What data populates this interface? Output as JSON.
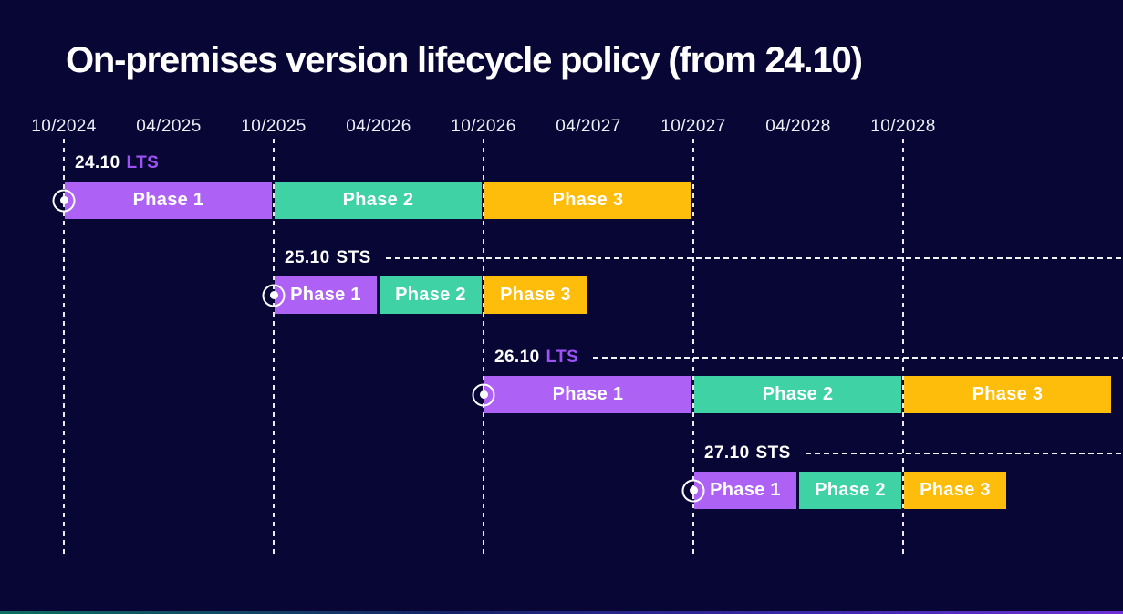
{
  "title": "On-premises version lifecycle policy (from 24.10)",
  "colors": {
    "background": "#080634",
    "phase1": "#ae62f5",
    "phase2": "#3ed2a4",
    "phase3": "#fdbd0a",
    "lts_accent": "#9d52f3",
    "sts_text": "#ffffff",
    "axis_text": "#eef0f8",
    "grid": "#ffffff",
    "footer_gradient": [
      "#0f7a64",
      "#16266f",
      "#3d2bb0",
      "#7a35e8"
    ]
  },
  "chart_data": {
    "type": "bar",
    "subtype": "gantt-timeline",
    "title": "On-premises version lifecycle policy (from 24.10)",
    "x_axis": {
      "unit": "month/year",
      "ticks": [
        "10/2024",
        "04/2025",
        "10/2025",
        "04/2026",
        "10/2026",
        "04/2027",
        "10/2027",
        "04/2028",
        "10/2028"
      ],
      "gridlines_at": [
        "10/2024",
        "10/2025",
        "10/2026",
        "10/2027",
        "10/2028"
      ],
      "range_start": "10/2024",
      "range_end": "10/2028"
    },
    "legend": "none",
    "grid": "dashed vertical at October ticks; dashed horizontal leader after STS/second-row labels",
    "releases": [
      {
        "version": "24.10",
        "channel": "LTS",
        "label_dash_line": false,
        "phases": [
          {
            "name": "Phase 1",
            "start": "10/2024",
            "end": "10/2025"
          },
          {
            "name": "Phase 2",
            "start": "10/2025",
            "end": "10/2026"
          },
          {
            "name": "Phase 3",
            "start": "10/2026",
            "end": "10/2027"
          }
        ]
      },
      {
        "version": "25.10",
        "channel": "STS",
        "label_dash_line": true,
        "phases": [
          {
            "name": "Phase 1",
            "start": "10/2025",
            "end": "04/2026"
          },
          {
            "name": "Phase 2",
            "start": "04/2026",
            "end": "10/2026"
          },
          {
            "name": "Phase 3",
            "start": "10/2026",
            "end": "04/2027"
          }
        ]
      },
      {
        "version": "26.10",
        "channel": "LTS",
        "label_dash_line": true,
        "phases": [
          {
            "name": "Phase 1",
            "start": "10/2026",
            "end": "10/2027"
          },
          {
            "name": "Phase 2",
            "start": "10/2027",
            "end": "10/2028"
          },
          {
            "name": "Phase 3",
            "start": "10/2028",
            "end": "10/2029"
          }
        ]
      },
      {
        "version": "27.10",
        "channel": "STS",
        "label_dash_line": true,
        "phases": [
          {
            "name": "Phase 1",
            "start": "10/2027",
            "end": "04/2028"
          },
          {
            "name": "Phase 2",
            "start": "04/2028",
            "end": "10/2028"
          },
          {
            "name": "Phase 3",
            "start": "10/2028",
            "end": "04/2029"
          }
        ]
      }
    ]
  }
}
